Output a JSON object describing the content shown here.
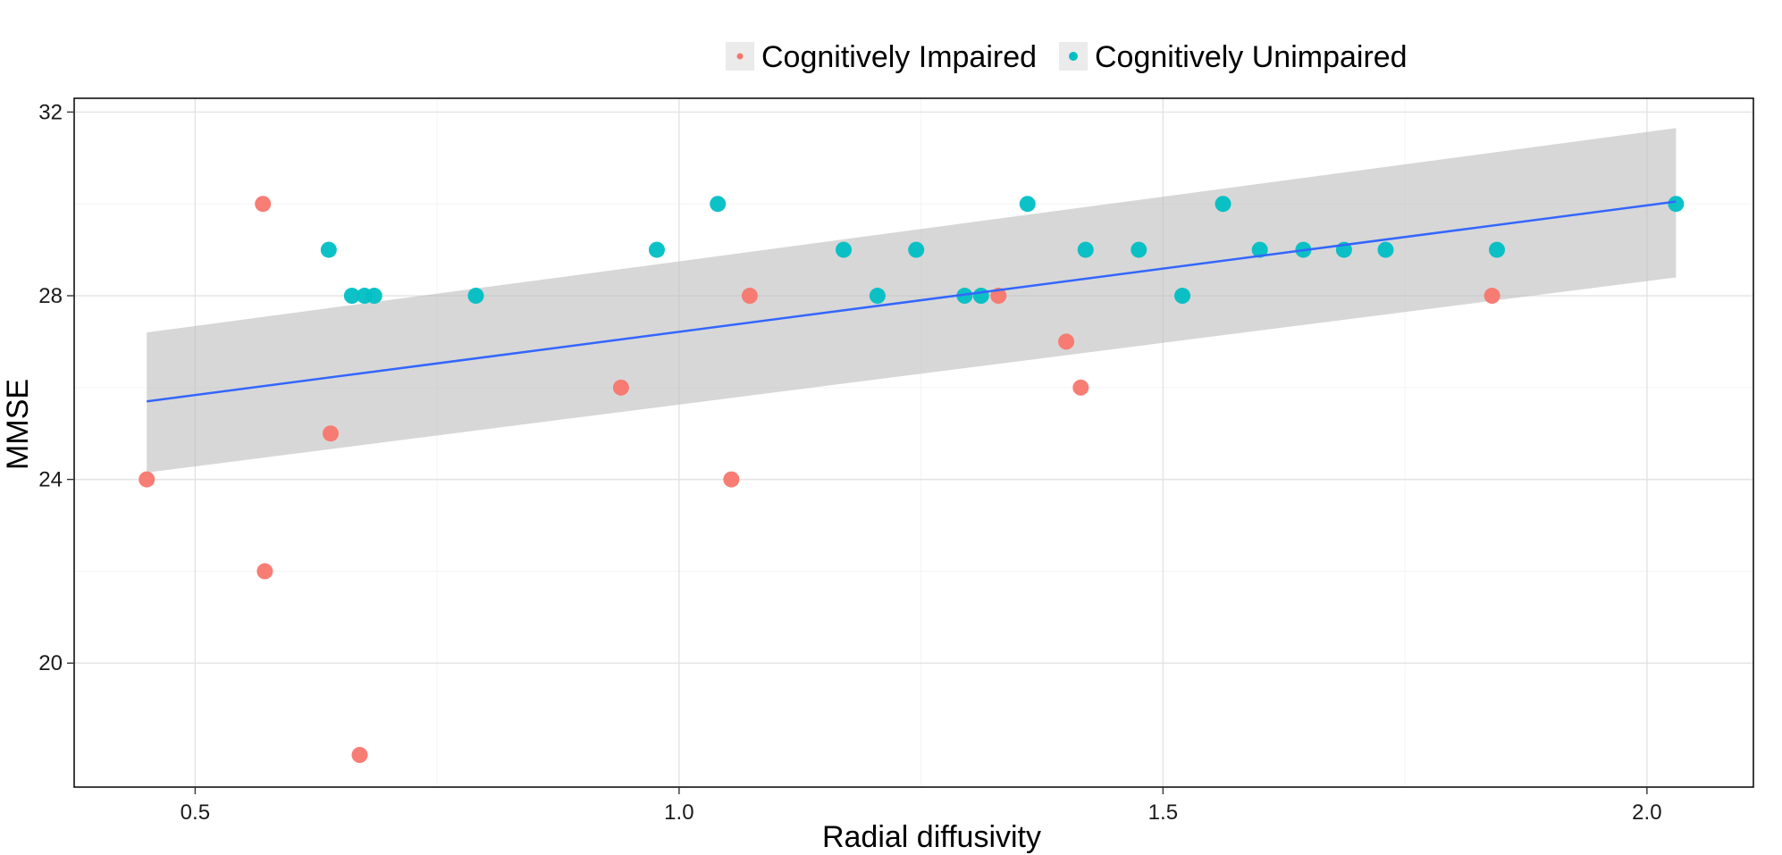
{
  "chart_data": {
    "type": "scatter",
    "title": "",
    "xlabel": "Radial diffusivity",
    "ylabel": "MMSE",
    "xlim": [
      0.375,
      2.11
    ],
    "ylim": [
      17.3,
      32.3
    ],
    "xticks": [
      0.5,
      1.0,
      1.5,
      2.0
    ],
    "xtick_labels": [
      "0.5",
      "1.0",
      "1.5",
      "2.0"
    ],
    "yticks": [
      20,
      24,
      28,
      32
    ],
    "ytick_labels": [
      "20",
      "24",
      "28",
      "32"
    ],
    "grid": true,
    "legend_position": "top",
    "colors": {
      "impaired": "#F8766D",
      "unimpaired": "#00BFC4",
      "fit": "#3366FF",
      "band": "#BEBEBE"
    },
    "series": [
      {
        "name": "Cognitively Impaired",
        "color": "#F8766D",
        "points": [
          [
            0.45,
            24
          ],
          [
            0.57,
            30
          ],
          [
            0.572,
            22
          ],
          [
            0.64,
            25
          ],
          [
            0.67,
            18
          ],
          [
            0.94,
            26
          ],
          [
            1.054,
            24
          ],
          [
            1.073,
            28
          ],
          [
            1.33,
            28
          ],
          [
            1.4,
            27
          ],
          [
            1.415,
            26
          ],
          [
            1.84,
            28
          ]
        ]
      },
      {
        "name": "Cognitively Unimpaired",
        "color": "#00BFC4",
        "points": [
          [
            0.638,
            29
          ],
          [
            0.662,
            28
          ],
          [
            0.675,
            28
          ],
          [
            0.685,
            28
          ],
          [
            0.79,
            28
          ],
          [
            0.977,
            29
          ],
          [
            1.04,
            30
          ],
          [
            1.17,
            29
          ],
          [
            1.205,
            28
          ],
          [
            1.245,
            29
          ],
          [
            1.295,
            28
          ],
          [
            1.312,
            28
          ],
          [
            1.36,
            30
          ],
          [
            1.42,
            29
          ],
          [
            1.475,
            29
          ],
          [
            1.52,
            28
          ],
          [
            1.562,
            30
          ],
          [
            1.6,
            29
          ],
          [
            1.645,
            29
          ],
          [
            1.687,
            29
          ],
          [
            1.73,
            29
          ],
          [
            1.845,
            29
          ],
          [
            2.03,
            30
          ]
        ]
      }
    ],
    "fit": {
      "x": [
        0.45,
        2.03
      ],
      "y": [
        25.7,
        30.05
      ],
      "band_lower": [
        24.15,
        28.4
      ],
      "band_upper": [
        27.2,
        31.65
      ]
    }
  }
}
